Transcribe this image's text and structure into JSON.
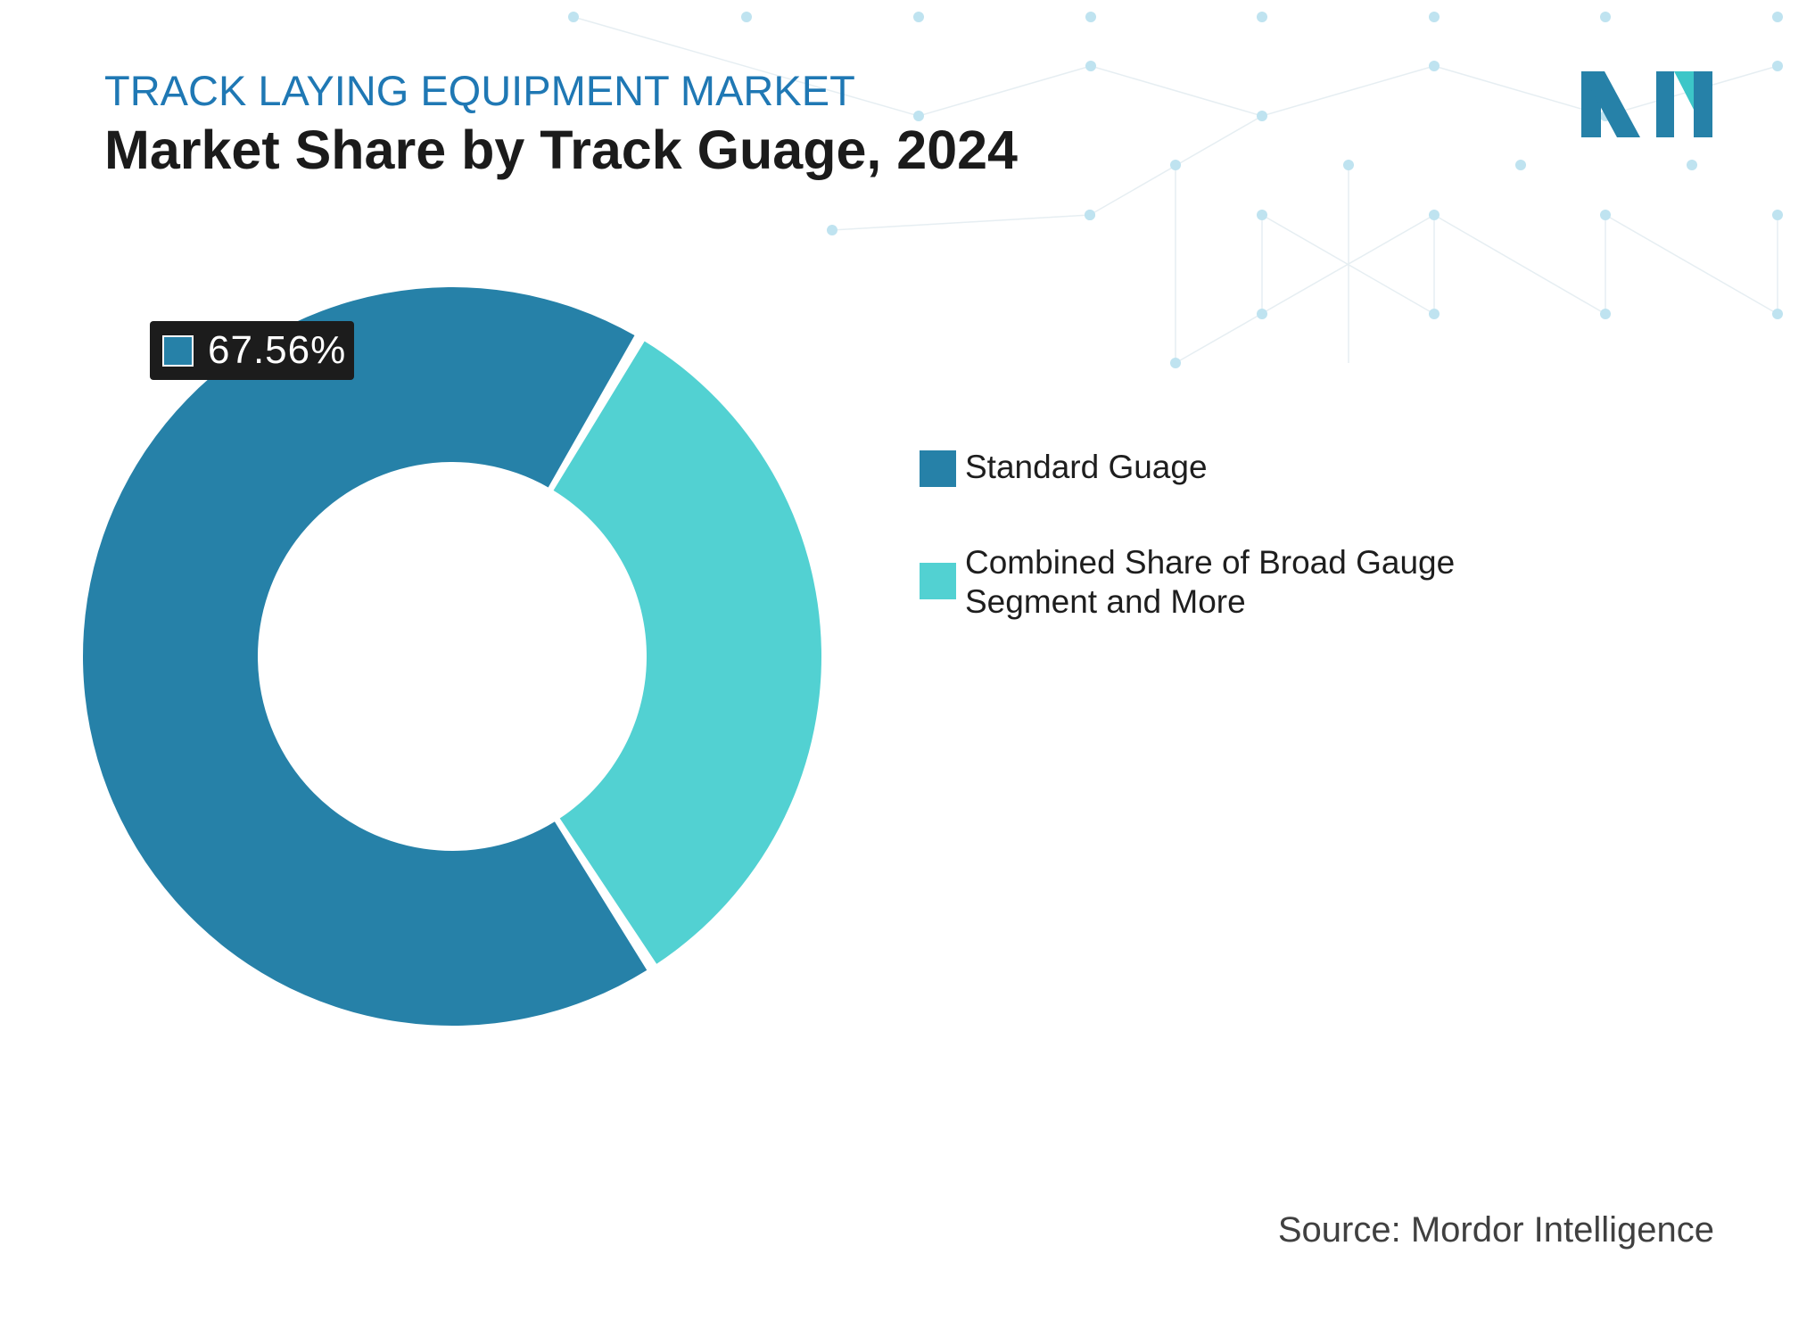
{
  "header": {
    "kicker": "TRACK LAYING EQUIPMENT MARKET",
    "title": "Market Share by Track Guage, 2024"
  },
  "colors": {
    "kicker": "#1f78b4",
    "standard": "#2681a8",
    "combined": "#52d1d2",
    "logo_dark": "#2681a8",
    "logo_light": "#3cc6c8",
    "pattern_dot": "#bfe3f0",
    "pattern_line": "#e6eef2"
  },
  "chart_data": {
    "type": "pie",
    "title": "Market Share by Track Guage, 2024",
    "variant": "donut",
    "series": [
      {
        "name": "Standard Guage",
        "value": 67.56
      },
      {
        "name": "Combined Share of Broad Gauge Segment and More",
        "value": 32.44
      }
    ],
    "data_labels": [
      "67.56%"
    ],
    "legend_position": "right"
  },
  "value_tag": {
    "label": "67.56%"
  },
  "legend": {
    "items": [
      {
        "label": "Standard Guage"
      },
      {
        "label": "Combined Share of Broad Gauge Segment and More"
      }
    ]
  },
  "footer": {
    "source": "Source: Mordor Intelligence"
  },
  "logo": {
    "icon": "mordor-logo-icon"
  }
}
